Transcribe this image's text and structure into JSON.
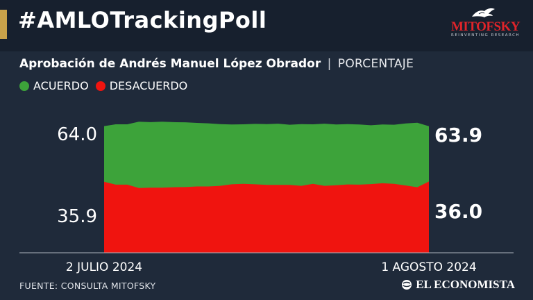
{
  "header": {
    "hashtag": "#AMLOTrackingPoll",
    "logo_name": "MITOFSKY",
    "logo_tagline": "REINVENTING RESEARCH"
  },
  "subtitle": {
    "main": "Aprobación de Andrés Manuel López Obrador",
    "separator": "|",
    "unit": "PORCENTAJE"
  },
  "chart_data": {
    "type": "area",
    "title": "Aprobación de Andrés Manuel López Obrador",
    "unit": "PORCENTAJE",
    "legend": [
      "ACUERDO",
      "DESACUERDO"
    ],
    "series": [
      {
        "name": "ACUERDO",
        "color": "#3da33a",
        "values": [
          64.0,
          64.9,
          64.9,
          66.2,
          66.0,
          66.2,
          66.0,
          65.9,
          65.6,
          65.4,
          65.0,
          64.8,
          64.9,
          65.1,
          65.0,
          65.2,
          64.7,
          65.0,
          64.9,
          65.2,
          64.8,
          65.0,
          64.8,
          64.4,
          64.8,
          64.7,
          65.3,
          65.7,
          63.9
        ]
      },
      {
        "name": "DESACUERDO",
        "color": "#f0140f",
        "values": [
          35.9,
          34.4,
          34.4,
          32.7,
          32.9,
          32.9,
          33.1,
          33.2,
          33.5,
          33.5,
          33.8,
          34.6,
          34.8,
          34.6,
          34.3,
          34.3,
          34.3,
          33.8,
          34.8,
          33.8,
          34.1,
          34.5,
          34.4,
          34.7,
          35.1,
          34.8,
          34.0,
          33.1,
          36.0
        ]
      }
    ],
    "ylim": [
      0,
      100
    ],
    "start_label": "2 JULIO 2024",
    "end_label": "1 AGOSTO 2024",
    "label_left": {
      "acuerdo": "64.0",
      "desacuerdo": "35.9"
    },
    "label_right": {
      "acuerdo": "63.9",
      "desacuerdo": "36.0"
    },
    "grid": false
  },
  "footer": {
    "source": "FUENTE: CONSULTA MITOFSKY",
    "brand": "EL ECONOMISTA"
  }
}
